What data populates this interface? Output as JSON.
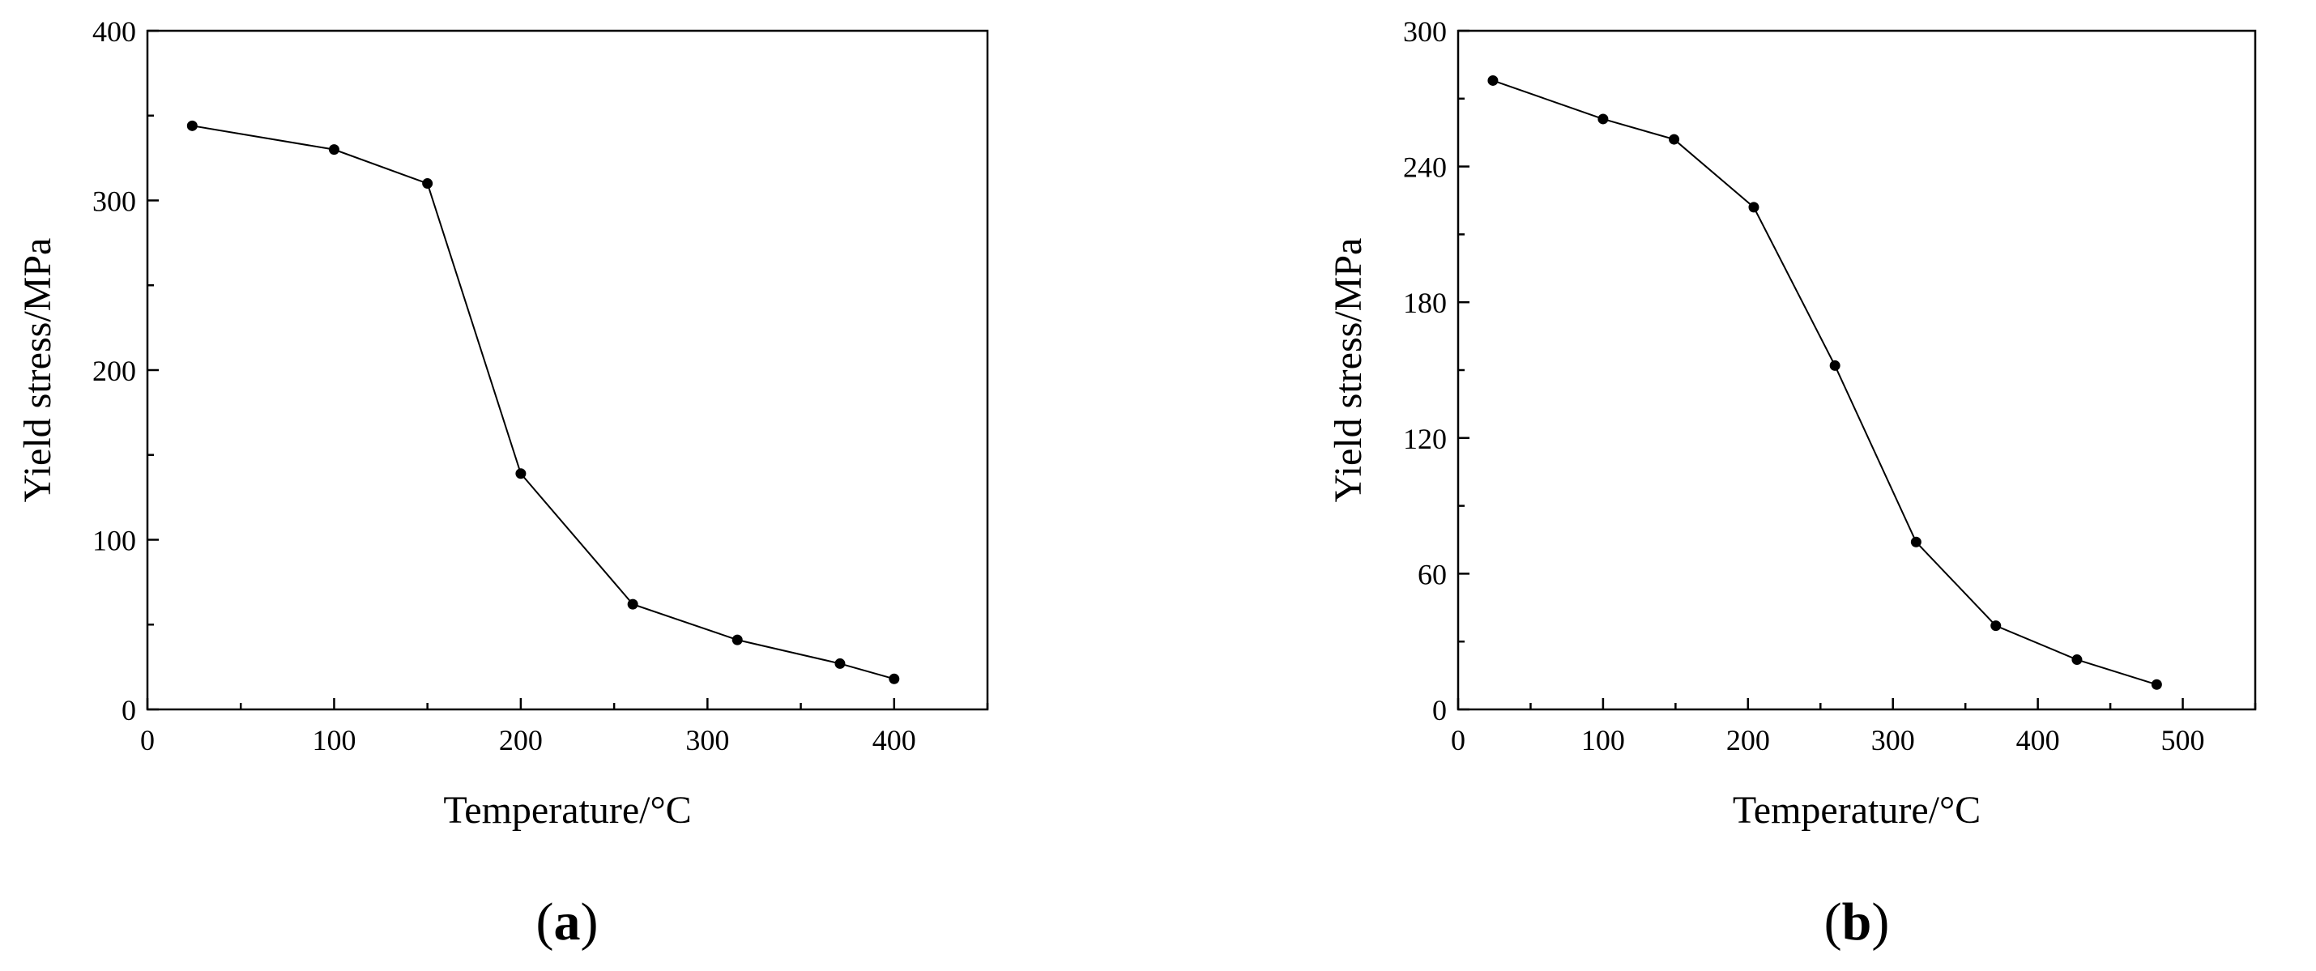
{
  "chart_data": [
    {
      "type": "line",
      "panel_label": "a",
      "title": "",
      "xlabel": "Temperature/°C",
      "ylabel": "Yield stress/MPa",
      "xlim": [
        0,
        450
      ],
      "ylim": [
        0,
        400
      ],
      "xticks": [
        0,
        100,
        200,
        300,
        400
      ],
      "yticks": [
        0,
        100,
        200,
        300,
        400
      ],
      "grid": false,
      "series": [
        {
          "color": "#000000",
          "marker": "circle",
          "x": [
            24,
            100,
            150,
            200,
            260,
            316,
            371,
            400
          ],
          "y": [
            344,
            330,
            310,
            139,
            62,
            41,
            27,
            18
          ]
        }
      ]
    },
    {
      "type": "line",
      "panel_label": "b",
      "title": "",
      "xlabel": "Temperature/°C",
      "ylabel": "Yield stress/MPa",
      "xlim": [
        0,
        550
      ],
      "ylim": [
        0,
        300
      ],
      "xticks": [
        0,
        100,
        200,
        300,
        400,
        500
      ],
      "yticks": [
        0,
        60,
        120,
        180,
        240,
        300
      ],
      "grid": false,
      "series": [
        {
          "color": "#000000",
          "marker": "circle",
          "x": [
            24,
            100,
            149,
            204,
            260,
            316,
            371,
            427,
            482
          ],
          "y": [
            278,
            261,
            252,
            222,
            152,
            74,
            37,
            22,
            11
          ]
        }
      ]
    }
  ]
}
